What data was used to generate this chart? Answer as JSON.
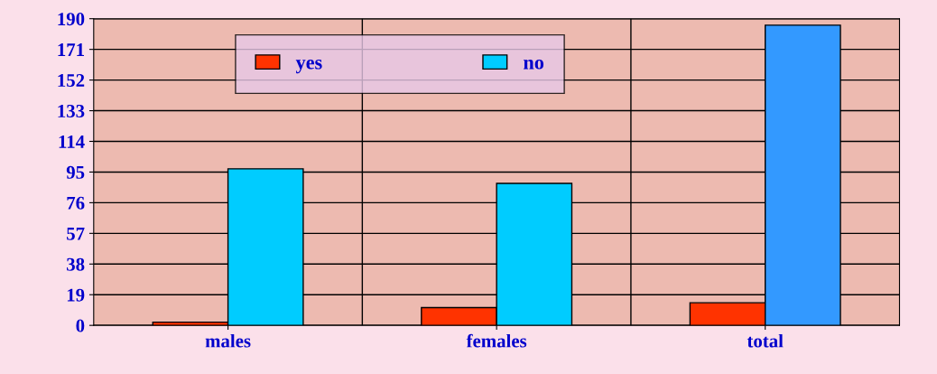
{
  "chart_data": {
    "type": "bar",
    "categories": [
      "males",
      "females",
      "total"
    ],
    "series": [
      {
        "name": "yes",
        "color": "#ff3300",
        "values": [
          2,
          11,
          14
        ]
      },
      {
        "name": "no",
        "color": "#00ccff",
        "colors": [
          "#00ccff",
          "#00ccff",
          "#3399ff"
        ],
        "values": [
          97,
          88,
          186
        ]
      }
    ],
    "ylim": [
      0,
      190
    ],
    "yticks": [
      0,
      19,
      38,
      57,
      76,
      95,
      114,
      133,
      152,
      171,
      190
    ],
    "grid": "y",
    "legend": "top"
  }
}
